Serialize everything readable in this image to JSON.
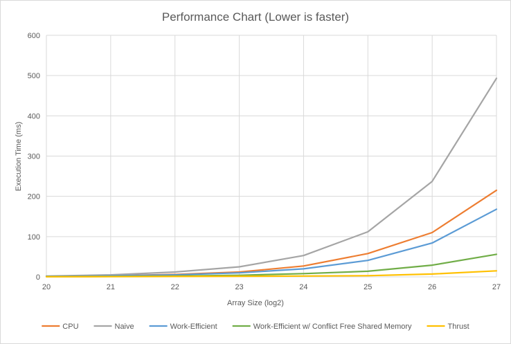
{
  "chart_data": {
    "type": "line",
    "title": "Performance Chart (Lower is faster)",
    "xlabel": "Array Size (log2)",
    "ylabel": "Execution Time (ms)",
    "x": [
      20,
      21,
      22,
      23,
      24,
      25,
      26,
      27
    ],
    "ylim": [
      0,
      600
    ],
    "yticks": [
      0,
      100,
      200,
      300,
      400,
      500,
      600
    ],
    "grid": true,
    "legend_position": "bottom",
    "series": [
      {
        "name": "CPU",
        "color": "#ed7d31",
        "values": [
          1.5,
          3,
          6,
          12,
          27,
          58,
          110,
          215
        ]
      },
      {
        "name": "Naive",
        "color": "#a5a5a5",
        "values": [
          2,
          5,
          12,
          25,
          53,
          112,
          237,
          493
        ]
      },
      {
        "name": "Work-Efficient",
        "color": "#5b9bd5",
        "values": [
          1,
          2.5,
          5,
          10,
          20,
          41,
          84,
          168
        ]
      },
      {
        "name": "Work-Efficient w/ Conflict Free Shared Memory",
        "color": "#70ad47",
        "values": [
          0.5,
          1,
          2,
          4,
          8,
          14,
          29,
          56
        ]
      },
      {
        "name": "Thrust",
        "color": "#ffc000",
        "values": [
          0.3,
          0.5,
          1,
          1.5,
          2,
          3,
          7,
          15
        ]
      }
    ]
  }
}
